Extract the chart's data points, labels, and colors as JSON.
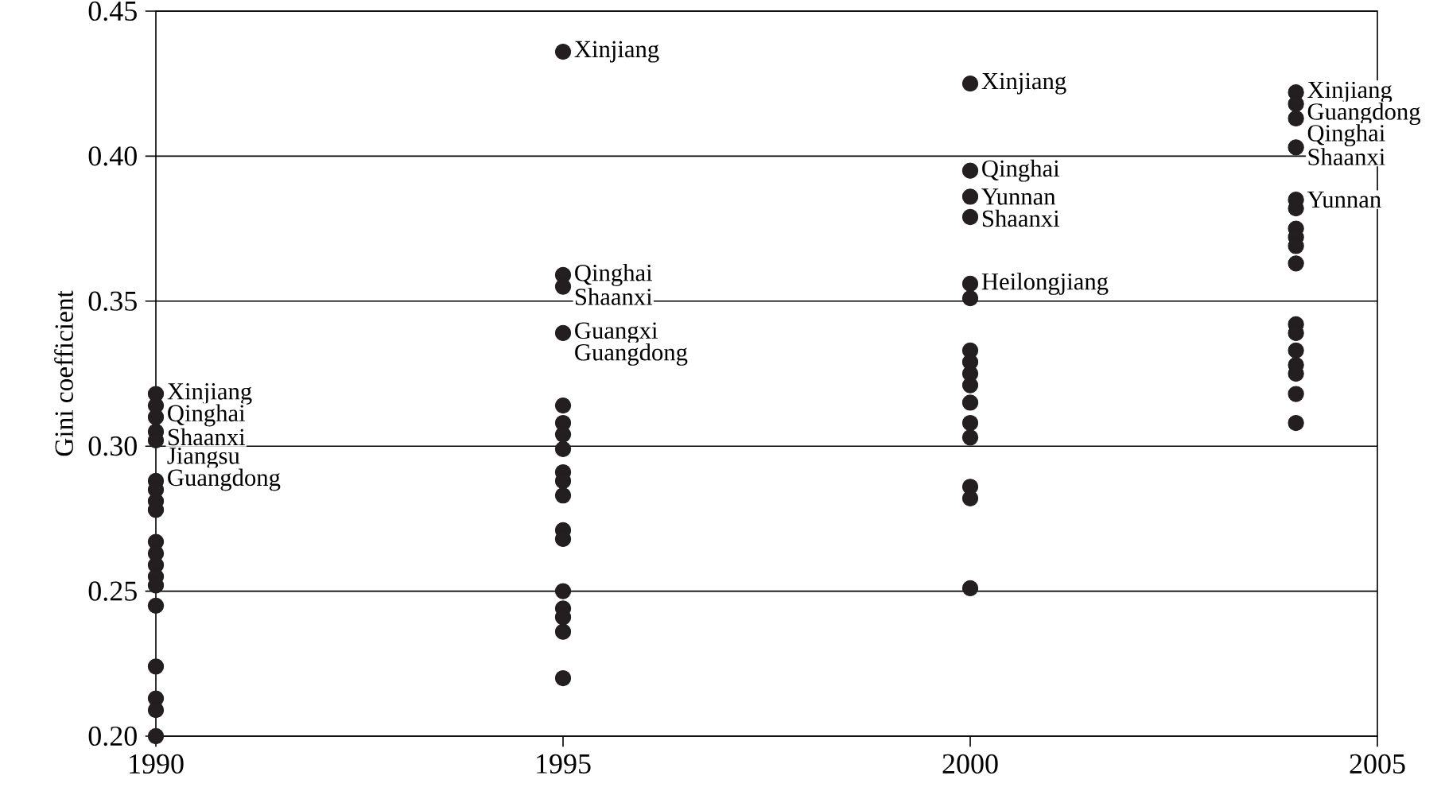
{
  "chart_data": {
    "type": "scatter",
    "ylabel": "Gini coefficient",
    "xlim": [
      1990,
      2005
    ],
    "xticks": [
      1990,
      1995,
      2000,
      2005
    ],
    "ylim": [
      0.2,
      0.45
    ],
    "yticks": [
      {
        "value": 0.2,
        "label": "0.20"
      },
      {
        "value": 0.25,
        "label": "0.25"
      },
      {
        "value": 0.3,
        "label": "0.30"
      },
      {
        "value": 0.35,
        "label": "0.35"
      },
      {
        "value": 0.4,
        "label": "0.40"
      },
      {
        "value": 0.45,
        "label": "0.45"
      }
    ],
    "grid": "y",
    "marker": "circle",
    "series": [
      {
        "color": "#231f20",
        "x": [
          1990,
          1990,
          1990,
          1990,
          1990,
          1990,
          1990,
          1990,
          1990,
          1990,
          1990,
          1990,
          1990,
          1990,
          1990,
          1990,
          1990,
          1990,
          1990
        ],
        "values": [
          0.318,
          0.314,
          0.31,
          0.305,
          0.302,
          0.288,
          0.285,
          0.281,
          0.278,
          0.267,
          0.263,
          0.259,
          0.255,
          0.252,
          0.245,
          0.224,
          0.213,
          0.209,
          0.2
        ]
      },
      {
        "color": "#231f20",
        "x": [
          1995,
          1995,
          1995,
          1995,
          1995,
          1995,
          1995,
          1995,
          1995,
          1995,
          1995,
          1995,
          1995,
          1995,
          1995,
          1995,
          1995,
          1995
        ],
        "values": [
          0.436,
          0.359,
          0.355,
          0.339,
          0.314,
          0.308,
          0.304,
          0.299,
          0.291,
          0.288,
          0.283,
          0.271,
          0.268,
          0.25,
          0.244,
          0.241,
          0.236,
          0.22
        ]
      },
      {
        "color": "#231f20",
        "x": [
          2000,
          2000,
          2000,
          2000,
          2000,
          2000,
          2000,
          2000,
          2000,
          2000,
          2000,
          2000,
          2000,
          2000,
          2000,
          2000
        ],
        "values": [
          0.425,
          0.395,
          0.386,
          0.379,
          0.356,
          0.351,
          0.333,
          0.329,
          0.325,
          0.321,
          0.315,
          0.308,
          0.303,
          0.286,
          0.282,
          0.251
        ]
      },
      {
        "color": "#231f20",
        "x": [
          2004,
          2004,
          2004,
          2004,
          2004,
          2004,
          2004,
          2004,
          2004,
          2004,
          2004,
          2004,
          2004,
          2004,
          2004,
          2004,
          2004
        ],
        "values": [
          0.422,
          0.418,
          0.413,
          0.403,
          0.385,
          0.382,
          0.375,
          0.372,
          0.369,
          0.363,
          0.342,
          0.339,
          0.333,
          0.328,
          0.325,
          0.318,
          0.308
        ]
      }
    ],
    "annotations": [
      {
        "text": "Xinjiang",
        "x": 1990,
        "y": 0.318
      },
      {
        "text": "Qinghai",
        "x": 1990,
        "y": 0.314
      },
      {
        "text": "Shaanxi",
        "x": 1990,
        "y": 0.31
      },
      {
        "text": "Jiangsu",
        "x": 1990,
        "y": 0.305
      },
      {
        "text": "Guangdong",
        "x": 1990,
        "y": 0.302
      },
      {
        "text": "Xinjiang",
        "x": 1995,
        "y": 0.436
      },
      {
        "text": "Qinghai",
        "x": 1995,
        "y": 0.359
      },
      {
        "text": "Shaanxi",
        "x": 1995,
        "y": 0.355
      },
      {
        "text": "Guangxi",
        "x": 1995,
        "y": 0.339
      },
      {
        "text": "Guangdong",
        "x": 1995,
        "y": 0.339
      },
      {
        "text": "Xinjiang",
        "x": 2000,
        "y": 0.425
      },
      {
        "text": "Qinghai",
        "x": 2000,
        "y": 0.395
      },
      {
        "text": "Yunnan",
        "x": 2000,
        "y": 0.386
      },
      {
        "text": "Shaanxi",
        "x": 2000,
        "y": 0.379
      },
      {
        "text": "Heilongjiang",
        "x": 2000,
        "y": 0.356
      },
      {
        "text": "Xinjiang",
        "x": 2004,
        "y": 0.422
      },
      {
        "text": "Guangdong",
        "x": 2004,
        "y": 0.418
      },
      {
        "text": "Qinghai",
        "x": 2004,
        "y": 0.413
      },
      {
        "text": "Shaanxi",
        "x": 2004,
        "y": 0.403
      },
      {
        "text": "Yunnan",
        "x": 2004,
        "y": 0.385
      }
    ]
  }
}
